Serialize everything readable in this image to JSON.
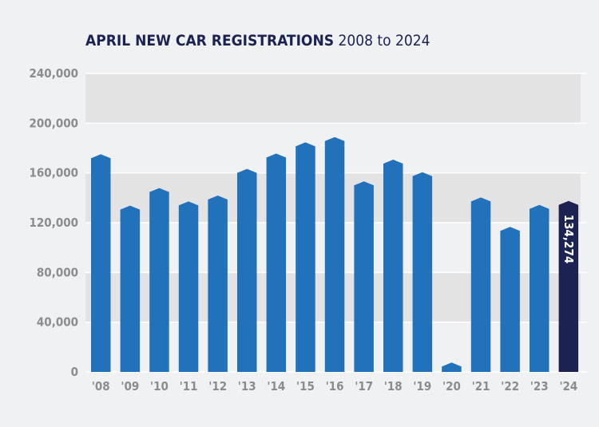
{
  "chart_data": {
    "type": "bar",
    "title": "APRIL NEW CAR REGISTRATIONS",
    "subtitle": "2008 to 2024",
    "xlabel": "",
    "ylabel": "",
    "ylim": [
      0,
      240000
    ],
    "yticks": [
      "0",
      "40,000",
      "80,000",
      "120,000",
      "160,000",
      "200,000",
      "240,000"
    ],
    "grid": "alternating horizontal bands",
    "categories": [
      "'08",
      "'09",
      "'10",
      "'11",
      "'12",
      "'13",
      "'14",
      "'15",
      "'16",
      "'17",
      "'18",
      "'19",
      "'20",
      "'21",
      "'22",
      "'23",
      "'24"
    ],
    "values": [
      171800,
      130500,
      144600,
      133900,
      138600,
      160000,
      172400,
      181400,
      185600,
      150000,
      167500,
      157400,
      4300,
      137100,
      113400,
      131100,
      134274
    ],
    "highlight": {
      "category": "'24",
      "label": "134,274"
    },
    "colors": {
      "bar": "#2272bb",
      "highlight": "#1c2352",
      "band": "#e3e3e4",
      "background": "#eff1f3",
      "title": "#1c2352"
    }
  }
}
